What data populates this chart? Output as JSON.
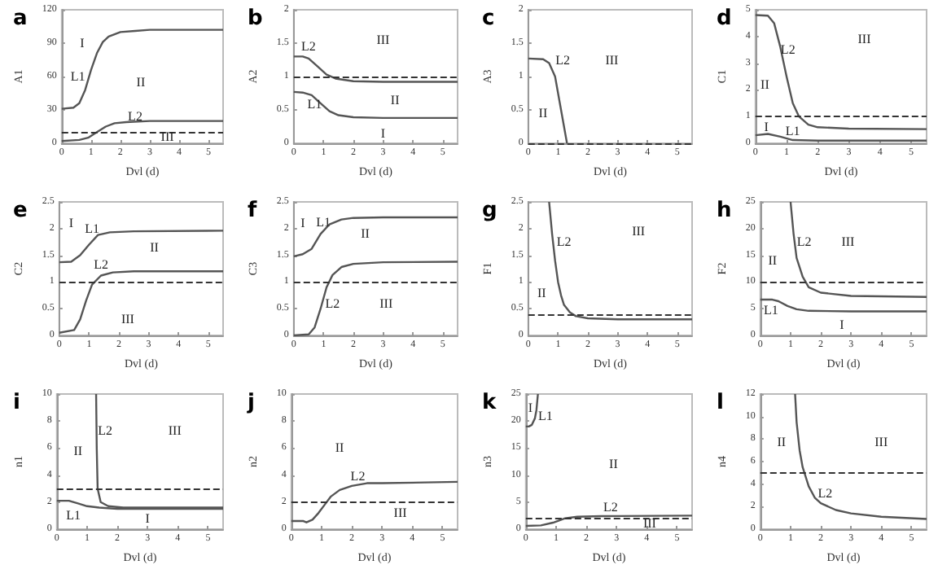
{
  "chart_data": [
    {
      "type": "line",
      "title": "a",
      "xlabel": "Dvl (d)",
      "ylabel": "A1",
      "xlim": [
        0,
        5.5
      ],
      "xticks": [
        0,
        1,
        2,
        3,
        4,
        5
      ],
      "ylim": [
        0,
        120
      ],
      "yticks": [
        0,
        30,
        60,
        90,
        120
      ],
      "grid": false,
      "marker": "none",
      "series": [
        {
          "color": "#555555",
          "x": [
            0,
            0.4,
            0.6,
            0.8,
            1.0,
            1.2,
            1.4,
            1.6,
            2,
            2.5,
            3,
            5.5
          ],
          "values": [
            31,
            32,
            36,
            48,
            66,
            81,
            91,
            96,
            100,
            101,
            102,
            102
          ]
        },
        {
          "color": "#555555",
          "x": [
            0,
            0.6,
            0.9,
            1.2,
            1.5,
            1.8,
            2.2,
            3,
            5.5
          ],
          "values": [
            2,
            3,
            5,
            10,
            15,
            18,
            19,
            20,
            20
          ]
        }
      ],
      "ref_lines": [
        {
          "axis": "y",
          "value": 10,
          "line_style": "dashed",
          "color": "#333333"
        }
      ],
      "annotations": [
        "I",
        "L1",
        "II",
        "L2",
        "III"
      ]
    },
    {
      "type": "line",
      "title": "b",
      "xlabel": "Dvl (d)",
      "ylabel": "A2",
      "xlim": [
        0,
        5.5
      ],
      "xticks": [
        0,
        1,
        2,
        3,
        4,
        5
      ],
      "ylim": [
        0,
        2
      ],
      "yticks": [
        0,
        0.5,
        1,
        1.5,
        2
      ],
      "grid": false,
      "marker": "none",
      "series": [
        {
          "color": "#555555",
          "x": [
            0,
            0.3,
            0.5,
            0.8,
            1.1,
            1.4,
            2,
            3,
            5.5
          ],
          "values": [
            1.3,
            1.3,
            1.27,
            1.15,
            1.03,
            0.97,
            0.93,
            0.92,
            0.92
          ]
        },
        {
          "color": "#555555",
          "x": [
            0,
            0.3,
            0.6,
            0.9,
            1.2,
            1.5,
            2,
            3,
            5.5
          ],
          "values": [
            0.77,
            0.76,
            0.72,
            0.6,
            0.48,
            0.42,
            0.39,
            0.38,
            0.38
          ]
        }
      ],
      "ref_lines": [
        {
          "axis": "y",
          "value": 1,
          "line_style": "dashed",
          "color": "#333333"
        }
      ],
      "annotations": [
        "L2",
        "L1",
        "III",
        "II",
        "I"
      ]
    },
    {
      "type": "line",
      "title": "c",
      "xlabel": "Dvl (d)",
      "ylabel": "A3",
      "xlim": [
        0,
        5.5
      ],
      "xticks": [
        0,
        1,
        2,
        3,
        4,
        5
      ],
      "ylim": [
        0,
        2
      ],
      "yticks": [
        0,
        0.5,
        1,
        1.5,
        2
      ],
      "grid": false,
      "marker": "none",
      "series": [
        {
          "color": "#555555",
          "x": [
            0,
            0.5,
            0.7,
            0.9,
            1.1,
            1.3
          ],
          "values": [
            1.27,
            1.26,
            1.2,
            1.0,
            0.5,
            0
          ]
        }
      ],
      "ref_lines": [
        {
          "axis": "y",
          "value": 0,
          "line_style": "dashed",
          "color": "#333333"
        }
      ],
      "annotations": [
        "L2",
        "III",
        "II"
      ]
    },
    {
      "type": "line",
      "title": "d",
      "xlabel": "Dvl (d)",
      "ylabel": "C1",
      "xlim": [
        0,
        5.5
      ],
      "xticks": [
        0,
        1,
        2,
        3,
        4,
        5
      ],
      "ylim": [
        0,
        5
      ],
      "yticks": [
        0,
        1,
        2,
        3,
        4,
        5
      ],
      "grid": false,
      "marker": "none",
      "series": [
        {
          "color": "#555555",
          "x": [
            0,
            0.4,
            0.6,
            0.8,
            1.0,
            1.2,
            1.4,
            1.7,
            2,
            3,
            5.5
          ],
          "values": [
            4.8,
            4.78,
            4.5,
            3.6,
            2.5,
            1.5,
            1.0,
            0.7,
            0.6,
            0.55,
            0.53
          ]
        },
        {
          "color": "#555555",
          "x": [
            0,
            0.4,
            0.8,
            1.2,
            2,
            5.5
          ],
          "values": [
            0.3,
            0.35,
            0.25,
            0.12,
            0.1,
            0.1
          ]
        }
      ],
      "ref_lines": [
        {
          "axis": "y",
          "value": 1,
          "line_style": "dashed",
          "color": "#333333"
        }
      ],
      "annotations": [
        "L2",
        "III",
        "II",
        "I",
        "L1"
      ]
    },
    {
      "type": "line",
      "title": "e",
      "xlabel": "Dvl (d)",
      "ylabel": "C2",
      "xlim": [
        0,
        5.5
      ],
      "xticks": [
        0,
        1,
        2,
        3,
        4,
        5
      ],
      "ylim": [
        0,
        2.5
      ],
      "yticks": [
        0,
        0.5,
        1,
        1.5,
        2,
        2.5
      ],
      "grid": false,
      "marker": "none",
      "series": [
        {
          "color": "#555555",
          "x": [
            0,
            0.4,
            0.7,
            1.0,
            1.3,
            1.7,
            2.5,
            5.5
          ],
          "values": [
            1.37,
            1.38,
            1.5,
            1.7,
            1.88,
            1.93,
            1.95,
            1.96
          ]
        },
        {
          "color": "#555555",
          "x": [
            0,
            0.5,
            0.7,
            0.9,
            1.1,
            1.4,
            1.8,
            2.5,
            5.5
          ],
          "values": [
            0.05,
            0.1,
            0.3,
            0.65,
            0.95,
            1.12,
            1.18,
            1.2,
            1.2
          ]
        }
      ],
      "ref_lines": [
        {
          "axis": "y",
          "value": 1,
          "line_style": "dashed",
          "color": "#333333"
        }
      ],
      "annotations": [
        "I",
        "L1",
        "II",
        "L2",
        "III"
      ]
    },
    {
      "type": "line",
      "title": "f",
      "xlabel": "Dvl (d)",
      "ylabel": "C3",
      "xlim": [
        0,
        5.5
      ],
      "xticks": [
        0,
        1,
        2,
        3,
        4,
        5
      ],
      "ylim": [
        0,
        2.5
      ],
      "yticks": [
        0,
        0.5,
        1,
        1.5,
        2,
        2.5
      ],
      "grid": false,
      "marker": "none",
      "series": [
        {
          "color": "#555555",
          "x": [
            0,
            0.3,
            0.6,
            0.9,
            1.2,
            1.6,
            2,
            3,
            5.5
          ],
          "values": [
            1.48,
            1.52,
            1.62,
            1.9,
            2.08,
            2.17,
            2.2,
            2.21,
            2.21
          ]
        },
        {
          "color": "#555555",
          "x": [
            0,
            0.5,
            0.7,
            0.9,
            1.1,
            1.3,
            1.6,
            2,
            3,
            5.5
          ],
          "values": [
            0,
            0.02,
            0.15,
            0.5,
            0.9,
            1.13,
            1.28,
            1.34,
            1.37,
            1.38
          ]
        }
      ],
      "ref_lines": [
        {
          "axis": "y",
          "value": 1,
          "line_style": "dashed",
          "color": "#333333"
        }
      ],
      "annotations": [
        "I",
        "L1",
        "II",
        "L2",
        "III"
      ]
    },
    {
      "type": "line",
      "title": "g",
      "xlabel": "Dvl (d)",
      "ylabel": "F1",
      "xlim": [
        0,
        5.5
      ],
      "xticks": [
        0,
        1,
        2,
        3,
        4,
        5
      ],
      "ylim": [
        0,
        2.5
      ],
      "yticks": [
        0,
        0.5,
        1,
        1.5,
        2,
        2.5
      ],
      "grid": false,
      "marker": "none",
      "series": [
        {
          "color": "#555555",
          "x": [
            0.7,
            0.8,
            0.9,
            1.0,
            1.1,
            1.2,
            1.4,
            1.6,
            2,
            3,
            5.5
          ],
          "values": [
            2.5,
            1.9,
            1.4,
            1.0,
            0.75,
            0.57,
            0.43,
            0.36,
            0.32,
            0.3,
            0.3
          ]
        }
      ],
      "ref_lines": [
        {
          "axis": "y",
          "value": 0.38,
          "line_style": "dashed",
          "color": "#333333"
        }
      ],
      "annotations": [
        "L2",
        "III",
        "II"
      ]
    },
    {
      "type": "line",
      "title": "h",
      "xlabel": "Dvl (d)",
      "ylabel": "F2",
      "xlim": [
        0,
        5.5
      ],
      "xticks": [
        0,
        1,
        2,
        3,
        4,
        5
      ],
      "ylim": [
        0,
        25
      ],
      "yticks": [
        0,
        5,
        10,
        15,
        20,
        25
      ],
      "grid": false,
      "marker": "none",
      "series": [
        {
          "color": "#555555",
          "x": [
            1.0,
            1.1,
            1.2,
            1.4,
            1.6,
            2,
            3,
            5.5
          ],
          "values": [
            25,
            19,
            14.5,
            11,
            9,
            8,
            7.4,
            7.2
          ]
        },
        {
          "color": "#555555",
          "x": [
            0,
            0.4,
            0.6,
            0.9,
            1.2,
            1.6,
            3,
            5.5
          ],
          "values": [
            6.7,
            6.7,
            6.4,
            5.5,
            4.9,
            4.6,
            4.5,
            4.5
          ]
        }
      ],
      "ref_lines": [
        {
          "axis": "y",
          "value": 10,
          "line_style": "dashed",
          "color": "#333333"
        }
      ],
      "annotations": [
        "L2",
        "III",
        "II",
        "L1",
        "I"
      ]
    },
    {
      "type": "line",
      "title": "i",
      "xlabel": "Dvl (d)",
      "ylabel": "n1",
      "xlim": [
        0,
        5.5
      ],
      "xticks": [
        0,
        1,
        2,
        3,
        4,
        5
      ],
      "ylim": [
        0,
        10
      ],
      "yticks": [
        0,
        2,
        4,
        6,
        8,
        10
      ],
      "grid": false,
      "marker": "none",
      "series": [
        {
          "color": "#555555",
          "x": [
            1.3,
            1.32,
            1.35,
            1.45,
            1.7,
            2.2,
            5.5
          ],
          "values": [
            10,
            6,
            3,
            2,
            1.7,
            1.6,
            1.6
          ]
        },
        {
          "color": "#555555",
          "x": [
            0,
            0.4,
            0.7,
            1.0,
            1.4,
            2,
            5.5
          ],
          "values": [
            2.1,
            2.1,
            1.9,
            1.7,
            1.6,
            1.5,
            1.5
          ]
        }
      ],
      "ref_lines": [
        {
          "axis": "y",
          "value": 3,
          "line_style": "dashed",
          "color": "#333333"
        }
      ],
      "annotations": [
        "L2",
        "III",
        "II",
        "L1",
        "I"
      ]
    },
    {
      "type": "line",
      "title": "j",
      "xlabel": "Dvl (d)",
      "ylabel": "n2",
      "xlim": [
        0,
        5.5
      ],
      "xticks": [
        0,
        1,
        2,
        3,
        4,
        5
      ],
      "ylim": [
        0,
        10
      ],
      "yticks": [
        0,
        2,
        4,
        6,
        8,
        10
      ],
      "grid": false,
      "marker": "none",
      "series": [
        {
          "color": "#555555",
          "x": [
            0,
            0.4,
            0.5,
            0.7,
            0.9,
            1.1,
            1.3,
            1.6,
            2,
            2.5,
            3,
            5.5
          ],
          "values": [
            0.6,
            0.6,
            0.5,
            0.7,
            1.2,
            1.8,
            2.4,
            2.9,
            3.2,
            3.4,
            3.4,
            3.5
          ]
        }
      ],
      "ref_lines": [
        {
          "axis": "y",
          "value": 2,
          "line_style": "dashed",
          "color": "#333333"
        }
      ],
      "annotations": [
        "II",
        "L2",
        "III"
      ]
    },
    {
      "type": "line",
      "title": "k",
      "xlabel": "Dvl (d)",
      "ylabel": "n3",
      "xlim": [
        0,
        5.5
      ],
      "xticks": [
        0,
        1,
        2,
        3,
        4,
        5
      ],
      "ylim": [
        0,
        25
      ],
      "yticks": [
        0,
        5,
        10,
        15,
        20,
        25
      ],
      "grid": false,
      "marker": "none",
      "series": [
        {
          "color": "#555555",
          "x": [
            0,
            0.1,
            0.2,
            0.3,
            0.35,
            0.4
          ],
          "values": [
            19,
            19,
            19.3,
            20.5,
            22,
            25
          ]
        },
        {
          "color": "#555555",
          "x": [
            0,
            0.5,
            0.9,
            1.3,
            1.7,
            2.5,
            5.5
          ],
          "values": [
            0.6,
            0.7,
            1.2,
            2,
            2.3,
            2.4,
            2.5
          ]
        }
      ],
      "ref_lines": [
        {
          "axis": "y",
          "value": 2,
          "line_style": "dashed",
          "color": "#333333"
        }
      ],
      "annotations": [
        "I",
        "L1",
        "II",
        "L2",
        "III"
      ]
    },
    {
      "type": "line",
      "title": "l",
      "xlabel": "Dvl (d)",
      "ylabel": "n4",
      "xlim": [
        0,
        5.5
      ],
      "xticks": [
        0,
        1,
        2,
        3,
        4,
        5
      ],
      "ylim": [
        0,
        12
      ],
      "yticks": [
        0,
        2,
        4,
        6,
        8,
        10,
        12
      ],
      "grid": false,
      "marker": "none",
      "series": [
        {
          "color": "#555555",
          "x": [
            1.15,
            1.2,
            1.3,
            1.4,
            1.6,
            1.8,
            2,
            2.5,
            3,
            4,
            5.5
          ],
          "values": [
            12,
            9.5,
            7,
            5.5,
            3.8,
            2.8,
            2.3,
            1.7,
            1.4,
            1.1,
            0.9
          ]
        }
      ],
      "ref_lines": [
        {
          "axis": "y",
          "value": 5,
          "line_style": "dashed",
          "color": "#333333"
        }
      ],
      "annotations": [
        "II",
        "III",
        "L2"
      ]
    }
  ]
}
